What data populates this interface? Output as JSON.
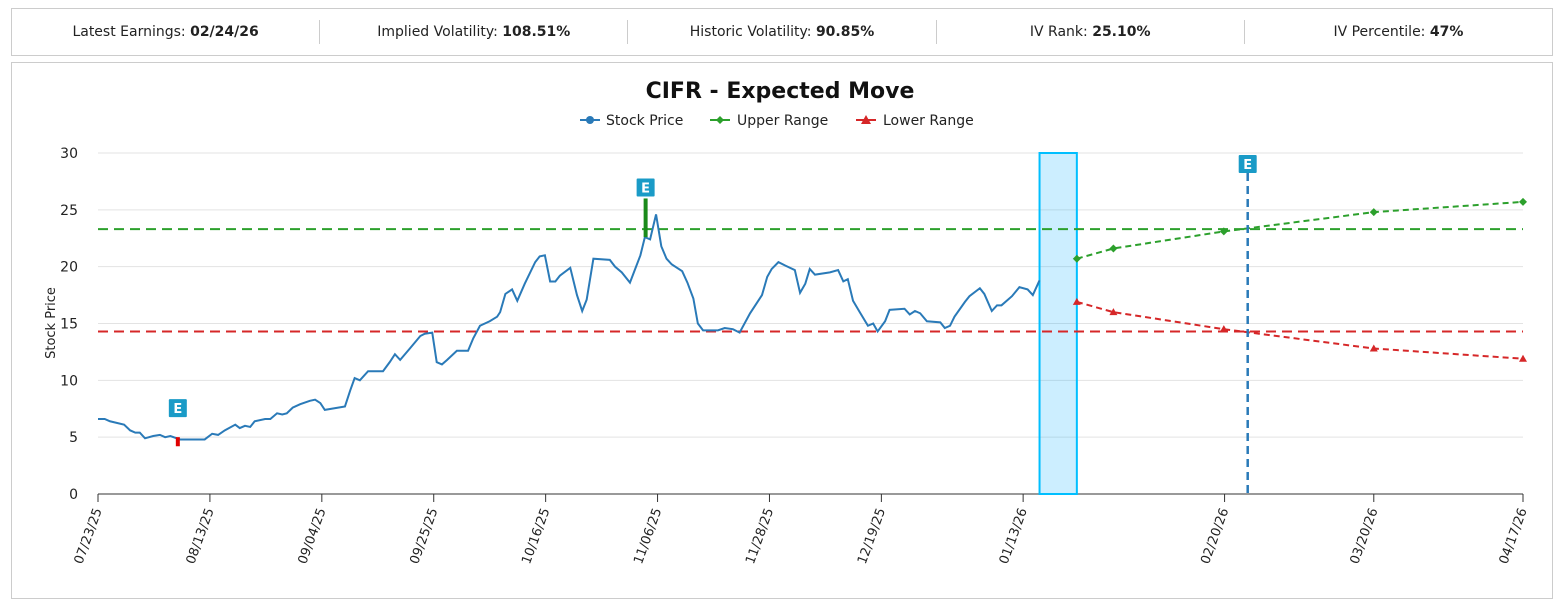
{
  "stats": [
    {
      "label": "Latest Earnings:",
      "value": "02/24/26"
    },
    {
      "label": "Implied Volatility:",
      "value": "108.51%"
    },
    {
      "label": "Historic Volatility:",
      "value": "90.85%"
    },
    {
      "label": "IV Rank:",
      "value": "25.10%"
    },
    {
      "label": "IV Percentile:",
      "value": "47%"
    }
  ],
  "chart_data": {
    "type": "line",
    "title": "CIFR - Expected Move",
    "ylabel": "Stock Price",
    "xlabel": "",
    "x_units": "trading-day index from 07/23/25",
    "ylim": [
      0,
      30
    ],
    "xlim": [
      0,
      191
    ],
    "yticks": [
      0,
      5,
      10,
      15,
      20,
      25,
      30
    ],
    "xticks": [
      {
        "x": 0,
        "label": "07/23/25"
      },
      {
        "x": 15,
        "label": "08/13/25"
      },
      {
        "x": 30,
        "label": "09/04/25"
      },
      {
        "x": 45,
        "label": "09/25/25"
      },
      {
        "x": 60,
        "label": "10/16/25"
      },
      {
        "x": 75,
        "label": "11/06/25"
      },
      {
        "x": 90,
        "label": "11/28/25"
      },
      {
        "x": 105,
        "label": "12/19/25"
      },
      {
        "x": 124,
        "label": "01/13/26"
      },
      {
        "x": 151,
        "label": "02/20/26"
      },
      {
        "x": 171,
        "label": "03/20/26"
      },
      {
        "x": 191,
        "label": "04/17/26"
      }
    ],
    "grid": true,
    "legend": "top-center",
    "colors": {
      "stock": "#2a7ab8",
      "upper": "#2ca02c",
      "lower": "#d62728",
      "band": "#00bfff",
      "earnings": "#1a9bc7"
    },
    "series": [
      {
        "name": "Stock Price",
        "points": [
          [
            0,
            6.6
          ],
          [
            0.9,
            6.6
          ],
          [
            1.6,
            6.4
          ],
          [
            3.5,
            6.1
          ],
          [
            4.3,
            5.6
          ],
          [
            5,
            5.4
          ],
          [
            5.6,
            5.4
          ],
          [
            6.3,
            4.9
          ],
          [
            7.4,
            5.1
          ],
          [
            8.3,
            5.2
          ],
          [
            9,
            5
          ],
          [
            9.7,
            5.1
          ],
          [
            11,
            4.8
          ],
          [
            13.7,
            4.8
          ],
          [
            14.3,
            4.8
          ],
          [
            15.3,
            5.3
          ],
          [
            16.1,
            5.2
          ],
          [
            17,
            5.6
          ],
          [
            18.4,
            6.1
          ],
          [
            19,
            5.8
          ],
          [
            19.7,
            6
          ],
          [
            20.4,
            5.9
          ],
          [
            21,
            6.4
          ],
          [
            22.4,
            6.6
          ],
          [
            23.1,
            6.6
          ],
          [
            24,
            7.1
          ],
          [
            24.7,
            7
          ],
          [
            25.3,
            7.1
          ],
          [
            26.1,
            7.6
          ],
          [
            27.1,
            7.9
          ],
          [
            28.4,
            8.2
          ],
          [
            29.1,
            8.3
          ],
          [
            29.8,
            8
          ],
          [
            30.4,
            7.4
          ],
          [
            33.1,
            7.7
          ],
          [
            33.8,
            9.1
          ],
          [
            34.4,
            10.2
          ],
          [
            35.1,
            10
          ],
          [
            36.2,
            10.8
          ],
          [
            38.2,
            10.8
          ],
          [
            39.1,
            11.6
          ],
          [
            39.8,
            12.3
          ],
          [
            40.5,
            11.8
          ],
          [
            41.8,
            12.8
          ],
          [
            43.2,
            13.9
          ],
          [
            43.8,
            14.1
          ],
          [
            44.8,
            14.2
          ],
          [
            45.4,
            11.6
          ],
          [
            46.1,
            11.4
          ],
          [
            46.8,
            11.8
          ],
          [
            48.1,
            12.6
          ],
          [
            49.6,
            12.6
          ],
          [
            50.3,
            13.7
          ],
          [
            51.2,
            14.8
          ],
          [
            52.5,
            15.2
          ],
          [
            53.5,
            15.6
          ],
          [
            53.9,
            16
          ],
          [
            54.6,
            17.6
          ],
          [
            55.5,
            18
          ],
          [
            56.2,
            17
          ],
          [
            57.2,
            18.5
          ],
          [
            58.6,
            20.4
          ],
          [
            59.2,
            20.9
          ],
          [
            59.9,
            21
          ],
          [
            60.6,
            18.7
          ],
          [
            61.3,
            18.7
          ],
          [
            61.9,
            19.2
          ],
          [
            63.3,
            19.9
          ],
          [
            64.2,
            17.5
          ],
          [
            64.9,
            16.1
          ],
          [
            65.5,
            17.1
          ],
          [
            66.4,
            20.7
          ],
          [
            68.6,
            20.6
          ],
          [
            69.3,
            20
          ],
          [
            70.2,
            19.5
          ],
          [
            71.3,
            18.6
          ],
          [
            72.7,
            21
          ],
          [
            73.3,
            22.6
          ],
          [
            74,
            22.4
          ],
          [
            74.8,
            24.6
          ],
          [
            75.5,
            21.8
          ],
          [
            76.2,
            20.7
          ],
          [
            76.9,
            20.2
          ],
          [
            78.3,
            19.6
          ],
          [
            79,
            18.6
          ],
          [
            79.8,
            17.2
          ],
          [
            80.4,
            15
          ],
          [
            81.1,
            14.4
          ],
          [
            82,
            14.4
          ],
          [
            83.1,
            14.4
          ],
          [
            84,
            14.6
          ],
          [
            85.1,
            14.5
          ],
          [
            86,
            14.2
          ],
          [
            87.4,
            15.9
          ],
          [
            89,
            17.5
          ],
          [
            89.7,
            19.1
          ],
          [
            90.3,
            19.8
          ],
          [
            91.2,
            20.4
          ],
          [
            92.1,
            20.1
          ],
          [
            93.4,
            19.7
          ],
          [
            94.1,
            17.7
          ],
          [
            94.8,
            18.5
          ],
          [
            95.4,
            19.8
          ],
          [
            96.1,
            19.3
          ],
          [
            98.1,
            19.5
          ],
          [
            99.2,
            19.7
          ],
          [
            99.9,
            18.7
          ],
          [
            100.5,
            18.9
          ],
          [
            101.2,
            17
          ],
          [
            102.1,
            16
          ],
          [
            103.2,
            14.8
          ],
          [
            103.9,
            15
          ],
          [
            104.5,
            14.3
          ],
          [
            105.5,
            15.2
          ],
          [
            106.1,
            16.2
          ],
          [
            108.1,
            16.3
          ],
          [
            108.8,
            15.8
          ],
          [
            109.5,
            16.1
          ],
          [
            110.2,
            15.9
          ],
          [
            111.1,
            15.2
          ],
          [
            112.9,
            15.1
          ],
          [
            113.5,
            14.6
          ],
          [
            114.2,
            14.8
          ],
          [
            114.8,
            15.6
          ],
          [
            116.2,
            16.9
          ],
          [
            116.8,
            17.4
          ],
          [
            118.2,
            18.1
          ],
          [
            118.8,
            17.6
          ],
          [
            119.8,
            16.1
          ],
          [
            120.5,
            16.6
          ],
          [
            121.1,
            16.6
          ],
          [
            122.5,
            17.4
          ],
          [
            123.5,
            18.2
          ],
          [
            124.6,
            18
          ],
          [
            125.3,
            17.5
          ],
          [
            126.2,
            18.8
          ]
        ]
      },
      {
        "name": "Upper Range",
        "points": [
          [
            131.2,
            20.7
          ],
          [
            136.1,
            21.6
          ],
          [
            150.9,
            23.1
          ],
          [
            171,
            24.8
          ],
          [
            191,
            25.7
          ]
        ]
      },
      {
        "name": "Lower Range",
        "points": [
          [
            131.2,
            16.9
          ],
          [
            136.1,
            16.0
          ],
          [
            150.9,
            14.5
          ],
          [
            171,
            12.8
          ],
          [
            191,
            11.9
          ]
        ]
      }
    ],
    "reference_lines": {
      "upper": 23.3,
      "lower": 14.3
    },
    "highlight_band": [
      126.2,
      131.2
    ],
    "earnings_markers": [
      {
        "x": 10.7,
        "label": "E",
        "from": 4.2,
        "to": 5.0,
        "color": "#e00000"
      },
      {
        "x": 73.4,
        "label": "E",
        "from": 22.6,
        "to": 26.0,
        "color": "#1a8a1a"
      },
      {
        "x": 154.1,
        "label": "E",
        "future": true
      }
    ]
  }
}
